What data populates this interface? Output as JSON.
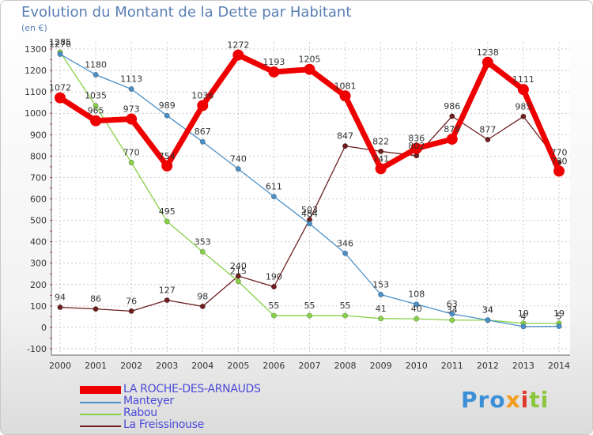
{
  "chart_data": {
    "type": "line",
    "title": "Evolution du Montant de la Dette par Habitant",
    "subtitle": "(en €)",
    "x": [
      "2000",
      "2001",
      "2002",
      "2003",
      "2004",
      "2005",
      "2006",
      "2007",
      "2008",
      "2009",
      "2010",
      "2011",
      "2012",
      "2013",
      "2014"
    ],
    "ylim": [
      -100,
      1300
    ],
    "yticks": [
      -100,
      0,
      100,
      200,
      300,
      400,
      500,
      600,
      700,
      800,
      900,
      1000,
      1100,
      1200,
      1300
    ],
    "grid": true,
    "legend_position": "bottom-left",
    "series": [
      {
        "name": "LA ROCHE-DES-ARNAUDS",
        "color": "#ee0000",
        "values": [
          1072,
          965,
          973,
          754,
          1036,
          1272,
          1193,
          1205,
          1081,
          741,
          836,
          879,
          1238,
          1111,
          730
        ],
        "labels": [
          "1072",
          "965",
          "973",
          "754",
          "1036",
          "1272",
          "1193",
          "1205",
          "1081",
          "741",
          "836",
          "879",
          "1238",
          "1111",
          "730"
        ]
      },
      {
        "name": "Manteyer",
        "color": "#4a90c8",
        "values": [
          1276,
          1180,
          1113,
          989,
          867,
          740,
          611,
          484,
          346,
          153,
          108,
          63,
          34,
          4,
          5
        ],
        "labels": [
          "1276",
          "1180",
          "1113",
          "989",
          "867",
          "740",
          "611",
          "484",
          "346",
          "153",
          "108",
          "63",
          "34",
          "4",
          "5"
        ]
      },
      {
        "name": "Rabou",
        "color": "#88d048",
        "values": [
          1285,
          1035,
          770,
          495,
          353,
          215,
          55,
          55,
          55,
          41,
          40,
          34,
          34,
          19,
          19
        ],
        "labels": [
          "1285",
          "1035",
          "770",
          "495",
          "353",
          "215",
          "55",
          "55",
          "55",
          "41",
          "40",
          "34",
          "34",
          "19",
          "19"
        ]
      },
      {
        "name": "La Freissinouse",
        "color": "#6e1e1e",
        "values": [
          94,
          86,
          76,
          127,
          98,
          240,
          190,
          503,
          847,
          822,
          802,
          986,
          877,
          985,
          770
        ],
        "labels": [
          "94",
          "86",
          "76",
          "127",
          "98",
          "240",
          "190",
          "503",
          "847",
          "822",
          "802",
          "986",
          "877",
          "985",
          "770"
        ]
      }
    ]
  },
  "brand": {
    "part1": "Pro",
    "part2": "x",
    "part3": "i",
    "part4": "ti"
  }
}
